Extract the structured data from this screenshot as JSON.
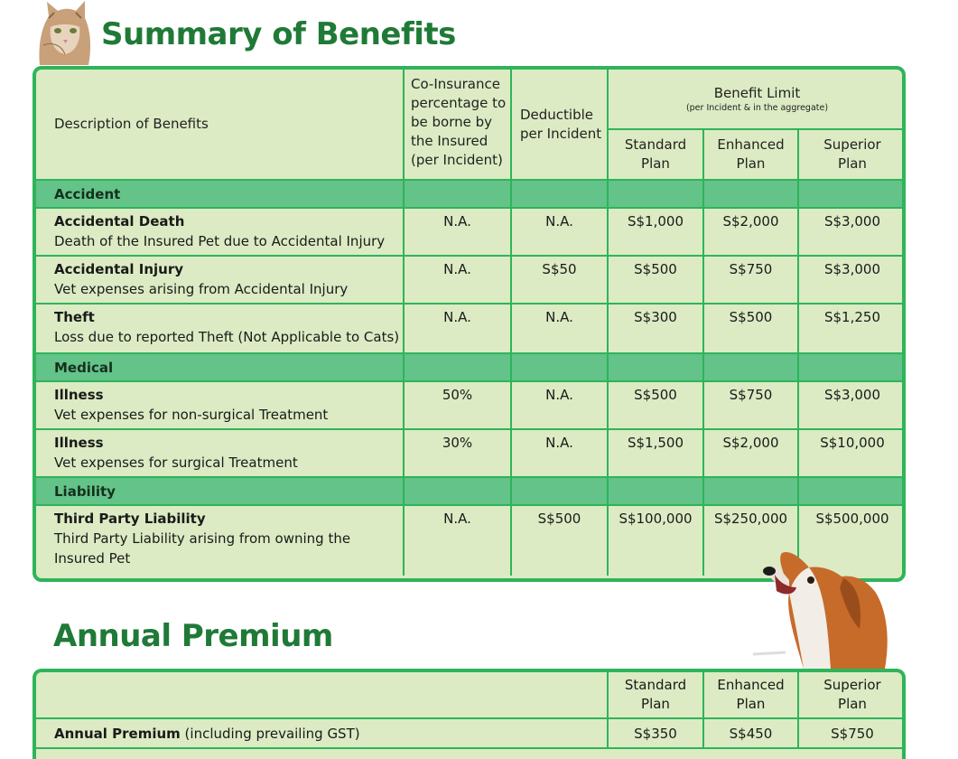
{
  "titles": {
    "summary": "Summary of Benefits",
    "premium": "Annual Premium"
  },
  "benefits": {
    "headers": {
      "description": "Description of Benefits",
      "coinsurance": [
        "Co-Insurance",
        "percentage to",
        "be borne by",
        "the Insured",
        "(per Incident)"
      ],
      "deductible": [
        "Deductible",
        "per Incident"
      ],
      "benefit_limit": "Benefit Limit",
      "benefit_limit_note": "(per Incident & in the aggregate)",
      "plans": [
        [
          "Standard",
          "Plan"
        ],
        [
          "Enhanced",
          "Plan"
        ],
        [
          "Superior",
          "Plan"
        ]
      ]
    },
    "sections": [
      {
        "label": "Accident",
        "rows": [
          {
            "name": "Accidental Death",
            "detail": "Death of the Insured Pet due to Accidental Injury",
            "coinsurance": "N.A.",
            "deductible": "N.A.",
            "standard": "S$1,000",
            "enhanced": "S$2,000",
            "superior": "S$3,000"
          },
          {
            "name": "Accidental Injury",
            "detail": "Vet expenses arising from Accidental Injury",
            "coinsurance": "N.A.",
            "deductible": "S$50",
            "standard": "S$500",
            "enhanced": "S$750",
            "superior": "S$3,000"
          },
          {
            "name": "Theft",
            "detail": "Loss due to reported Theft (Not Applicable to Cats)",
            "coinsurance": "N.A.",
            "deductible": "N.A.",
            "standard": "S$300",
            "enhanced": "S$500",
            "superior": "S$1,250"
          }
        ]
      },
      {
        "label": "Medical",
        "rows": [
          {
            "name": "Illness",
            "detail": "Vet expenses for non-surgical Treatment",
            "coinsurance": "50%",
            "deductible": "N.A.",
            "standard": "S$500",
            "enhanced": "S$750",
            "superior": "S$3,000"
          },
          {
            "name": "Illness",
            "detail": "Vet expenses for surgical Treatment",
            "coinsurance": "30%",
            "deductible": "N.A.",
            "standard": "S$1,500",
            "enhanced": "S$2,000",
            "superior": "S$10,000"
          }
        ]
      },
      {
        "label": "Liability",
        "rows": [
          {
            "name": "Third Party Liability",
            "detail": "Third Party Liability arising from owning the Insured Pet",
            "coinsurance": "N.A.",
            "deductible": "S$500",
            "standard": "S$100,000",
            "enhanced": "S$250,000",
            "superior": "S$500,000"
          }
        ]
      }
    ]
  },
  "premium": {
    "plans": [
      [
        "Standard",
        "Plan"
      ],
      [
        "Enhanced",
        "Plan"
      ],
      [
        "Superior",
        "Plan"
      ]
    ],
    "label_bold": "Annual Premium",
    "label_rest": " (including prevailing GST)",
    "standard": "S$350",
    "enhanced": "S$450",
    "superior": "S$750"
  },
  "colors": {
    "title_green": "#1f7a37",
    "border_green": "#2eb45a",
    "section_green": "#63c389",
    "card_bg": "#dcebc3"
  }
}
